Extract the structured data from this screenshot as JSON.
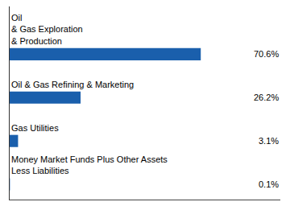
{
  "chart_data": {
    "type": "bar",
    "orientation": "horizontal",
    "categories": [
      "Money Market Funds Plus Other Assets\nLess Liabilities",
      "Gas Utilities",
      "Oil & Gas Refining & Marketing",
      "Oil\n& Gas Exploration\n& Production"
    ],
    "values": [
      0.1,
      3.1,
      26.2,
      70.6
    ],
    "value_labels": [
      "0.1%",
      "3.1%",
      "26.2%",
      "70.6%"
    ],
    "data_labels": true,
    "color": "#1a5fac",
    "xlim": [
      0,
      100
    ],
    "grid": false,
    "tick_labels": false
  }
}
